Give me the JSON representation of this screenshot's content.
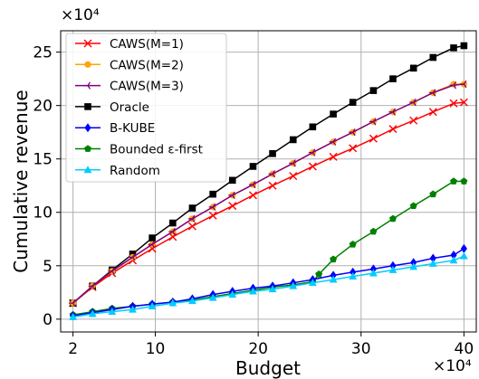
{
  "chart_data": {
    "type": "line",
    "xlabel": "Budget",
    "ylabel": "Cumulative revenue",
    "x_multiplier_label": "×10⁴",
    "y_multiplier_label": "×10⁴",
    "xlim": [
      0.8,
      41.2
    ],
    "ylim": [
      -1.2,
      27
    ],
    "x_ticks": [
      2,
      10,
      20,
      30,
      40
    ],
    "y_ticks": [
      0,
      5,
      10,
      15,
      20,
      25
    ],
    "grid": true,
    "legend_position": "top-left",
    "series": [
      {
        "name": "CAWS(M=1)",
        "color": "#ff0000",
        "marker": "x",
        "x": [
          2,
          3.9,
          5.8,
          7.8,
          9.7,
          11.7,
          13.6,
          15.6,
          17.5,
          19.5,
          21.4,
          23.4,
          25.3,
          27.3,
          29.2,
          31.2,
          33.1,
          35.1,
          37,
          39,
          40
        ],
        "y": [
          1.5,
          3.0,
          4.3,
          5.5,
          6.6,
          7.7,
          8.7,
          9.7,
          10.6,
          11.6,
          12.5,
          13.4,
          14.3,
          15.2,
          16.0,
          16.9,
          17.8,
          18.6,
          19.4,
          20.2,
          20.3
        ]
      },
      {
        "name": "CAWS(M=2)",
        "color": "#ffa500",
        "marker": "circle",
        "x": [
          2,
          3.9,
          5.8,
          7.8,
          9.7,
          11.7,
          13.6,
          15.6,
          17.5,
          19.5,
          21.4,
          23.4,
          25.3,
          27.3,
          29.2,
          31.2,
          33.1,
          35.1,
          37,
          39,
          40
        ],
        "y": [
          1.5,
          3.1,
          4.5,
          5.8,
          7.0,
          8.2,
          9.4,
          10.5,
          11.6,
          12.6,
          13.6,
          14.6,
          15.6,
          16.6,
          17.5,
          18.5,
          19.4,
          20.3,
          21.2,
          22.0,
          22.0
        ]
      },
      {
        "name": "CAWS(M=3)",
        "color": "#800080",
        "marker": "tri-left",
        "x": [
          2,
          3.9,
          5.8,
          7.8,
          9.7,
          11.7,
          13.6,
          15.6,
          17.5,
          19.5,
          21.4,
          23.4,
          25.3,
          27.3,
          29.2,
          31.2,
          33.1,
          35.1,
          37,
          39,
          40
        ],
        "y": [
          1.5,
          3.1,
          4.5,
          5.8,
          7.0,
          8.2,
          9.4,
          10.5,
          11.6,
          12.6,
          13.6,
          14.6,
          15.6,
          16.6,
          17.5,
          18.5,
          19.4,
          20.3,
          21.2,
          21.9,
          22.0
        ]
      },
      {
        "name": "Oracle",
        "color": "#000000",
        "marker": "square",
        "x": [
          2,
          3.9,
          5.8,
          7.8,
          9.7,
          11.7,
          13.6,
          15.6,
          17.5,
          19.5,
          21.4,
          23.4,
          25.3,
          27.3,
          29.2,
          31.2,
          33.1,
          35.1,
          37,
          39,
          40
        ],
        "y": [
          1.5,
          3.1,
          4.6,
          6.1,
          7.6,
          9.0,
          10.4,
          11.7,
          13.0,
          14.3,
          15.5,
          16.8,
          18.0,
          19.2,
          20.3,
          21.4,
          22.5,
          23.5,
          24.5,
          25.4,
          25.6
        ]
      },
      {
        "name": "B-KUBE",
        "color": "#0000ff",
        "marker": "diamond",
        "x": [
          2,
          3.9,
          5.8,
          7.8,
          9.7,
          11.7,
          13.6,
          15.6,
          17.5,
          19.5,
          21.4,
          23.4,
          25.3,
          27.3,
          29.2,
          31.2,
          33.1,
          35.1,
          37,
          39,
          40
        ],
        "y": [
          0.3,
          0.6,
          0.9,
          1.2,
          1.4,
          1.6,
          1.9,
          2.3,
          2.6,
          2.9,
          3.1,
          3.4,
          3.7,
          4.1,
          4.4,
          4.7,
          5.0,
          5.3,
          5.7,
          6.0,
          6.6
        ]
      },
      {
        "name": "Bounded ε-first",
        "color": "#008000",
        "marker": "pentagon",
        "x": [
          2,
          3.9,
          5.8,
          7.8,
          9.7,
          11.7,
          13.6,
          15.6,
          17.5,
          19.5,
          21.4,
          23.4,
          25.3,
          25.9,
          27.3,
          29.2,
          31.2,
          33.1,
          35.1,
          37,
          39,
          40
        ],
        "y": [
          0.4,
          0.7,
          1.0,
          1.2,
          1.4,
          1.6,
          1.8,
          2.1,
          2.4,
          2.7,
          3.0,
          3.2,
          3.5,
          4.2,
          5.6,
          7.0,
          8.2,
          9.4,
          10.6,
          11.7,
          12.9,
          12.9
        ]
      },
      {
        "name": "Random",
        "color": "#00ccff",
        "marker": "triangle",
        "x": [
          2,
          3.9,
          5.8,
          7.8,
          9.7,
          11.7,
          13.6,
          15.6,
          17.5,
          19.5,
          21.4,
          23.4,
          25.3,
          27.3,
          29.2,
          31.2,
          33.1,
          35.1,
          37,
          39,
          40
        ],
        "y": [
          0.2,
          0.5,
          0.7,
          0.9,
          1.2,
          1.5,
          1.7,
          2.0,
          2.3,
          2.6,
          2.8,
          3.1,
          3.4,
          3.7,
          4.0,
          4.3,
          4.6,
          4.9,
          5.2,
          5.5,
          5.9
        ]
      }
    ]
  }
}
